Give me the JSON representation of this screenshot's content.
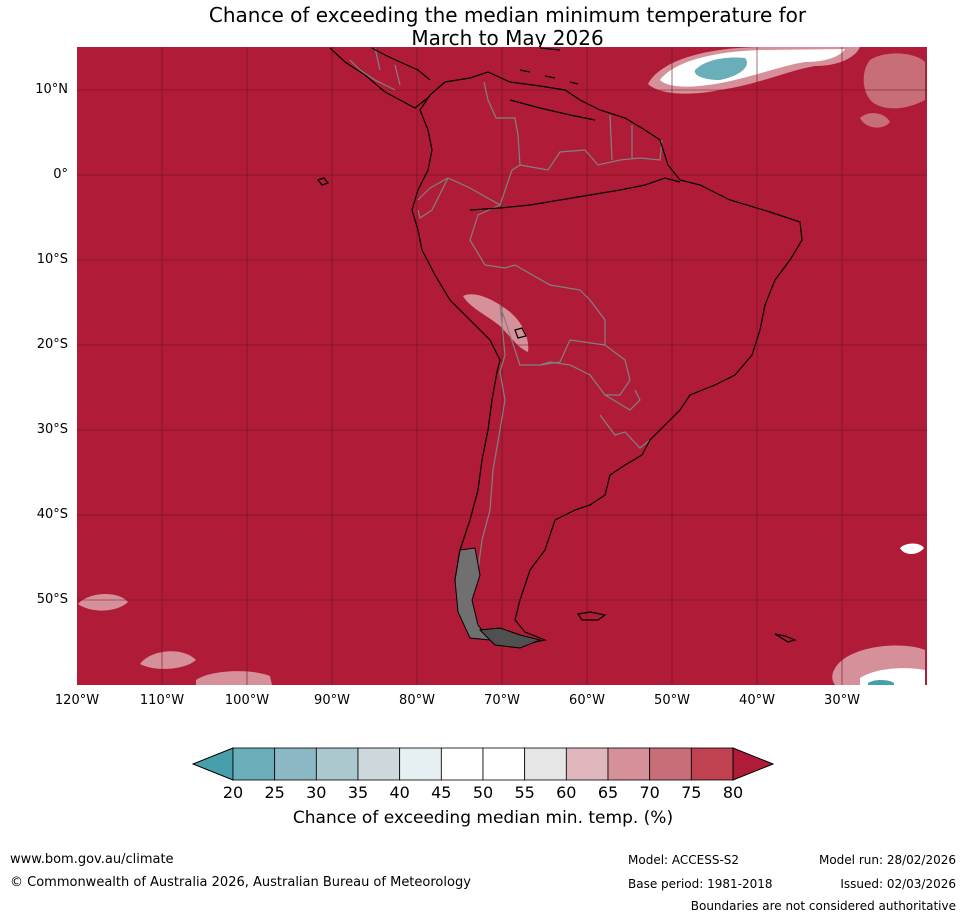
{
  "title": {
    "line1": "Chance of exceeding the median minimum temperature for",
    "line2": "March to May 2026"
  },
  "axes": {
    "lat_labels": [
      "10°N",
      "0°",
      "10°S",
      "20°S",
      "30°S",
      "40°S",
      "50°S"
    ],
    "lon_labels": [
      "120°W",
      "110°W",
      "100°W",
      "90°W",
      "80°W",
      "70°W",
      "60°W",
      "50°W",
      "40°W",
      "30°W"
    ]
  },
  "colorbar": {
    "ticks": [
      "20",
      "25",
      "30",
      "35",
      "40",
      "45",
      "50",
      "55",
      "60",
      "65",
      "70",
      "75",
      "80"
    ],
    "colors": [
      "#479fac",
      "#6aaeba",
      "#8bb8c4",
      "#aac8ce",
      "#ccd8db",
      "#e6eff1",
      "#ffffff",
      "#ffffff",
      "#e6e6e6",
      "#e1b7be",
      "#d6909a",
      "#c86e79",
      "#c0414f",
      "#b01c37"
    ],
    "label": "Chance of exceeding median min. temp. (%)"
  },
  "map_colors": {
    "background": "#b01c37",
    "land_outline": "#000000",
    "borders": "#808080",
    "gridlines": "#6a0f1e"
  },
  "footer": {
    "website": "www.bom.gov.au/climate",
    "copyright": "© Commonwealth of Australia 2026, Australian Bureau of Meteorology",
    "model": "Model: ACCESS-S2",
    "base_period": "Base period: 1981-2018",
    "model_run": "Model run: 28/02/2026",
    "issued": "Issued: 02/03/2026",
    "disclaimer": "Boundaries are not considered authoritative"
  }
}
